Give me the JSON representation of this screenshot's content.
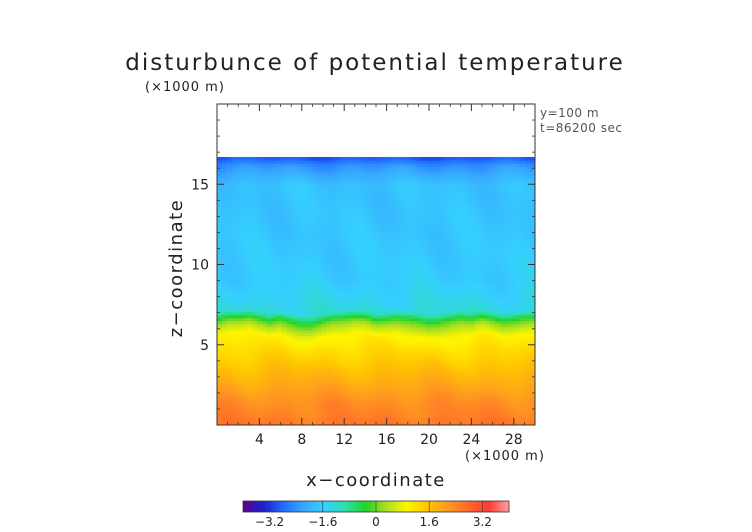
{
  "chart_data": {
    "type": "heatmap",
    "title": "disturbunce of potential temperature",
    "xlabel": "x−coordinate",
    "ylabel": "z−coordinate",
    "x_unit": "(×1000 m)",
    "y_unit": "(×1000 m)",
    "annotations": [
      "y=100 m",
      "t=86200 sec"
    ],
    "xlim": [
      0,
      30
    ],
    "ylim": [
      0,
      20
    ],
    "x_ticks": [
      4,
      8,
      12,
      16,
      20,
      24,
      28
    ],
    "x_tick_labels": [
      "4",
      "8",
      "12",
      "16",
      "20",
      "24",
      "28"
    ],
    "y_ticks": [
      5,
      10,
      15
    ],
    "y_tick_labels": [
      "5",
      "10",
      "15"
    ],
    "data_top": 16.7,
    "boundary_layer_top": [
      6.3,
      6.6,
      6.7,
      6.8,
      6.5,
      6.3,
      6.6,
      6.4,
      6.2,
      6.1,
      6.3,
      6.5,
      6.6,
      6.7,
      6.6,
      6.3,
      6.5,
      6.7,
      6.6,
      6.4,
      6.2,
      6.3,
      6.5,
      6.6,
      6.4,
      6.6,
      6.5,
      6.4,
      6.5,
      6.6,
      6.6
    ],
    "profile": [
      {
        "z": 0.0,
        "value": 2.6
      },
      {
        "z": 1.5,
        "value": 2.3
      },
      {
        "z": 3.0,
        "value": 1.8
      },
      {
        "z": 4.5,
        "value": 1.3
      },
      {
        "z": 5.5,
        "value": 0.9
      },
      {
        "z": 6.3,
        "value": 0.0
      },
      {
        "z": 7.0,
        "value": -1.3
      },
      {
        "z": 9.0,
        "value": -1.6
      },
      {
        "z": 12.0,
        "value": -1.7
      },
      {
        "z": 15.0,
        "value": -1.75
      },
      {
        "z": 16.2,
        "value": -2.4
      },
      {
        "z": 16.7,
        "value": -3.0
      }
    ],
    "colorbar": {
      "range": [
        -4,
        4
      ],
      "ticks": [
        -3.2,
        -1.6,
        0,
        1.6,
        3.2
      ],
      "tick_labels": [
        "−3.2",
        "−1.6",
        "0",
        "1.6",
        "3.2"
      ],
      "colors": [
        "#5a0090",
        "#2020d0",
        "#1f6fff",
        "#39a8ff",
        "#35d0ff",
        "#2be0a8",
        "#22d22b",
        "#a8e020",
        "#fff500",
        "#ffc600",
        "#ff9a20",
        "#ff6a2a",
        "#ff3b30",
        "#ffa0a8"
      ]
    }
  }
}
